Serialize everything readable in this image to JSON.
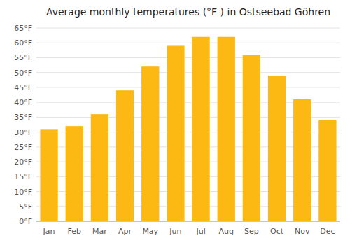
{
  "chart_data": {
    "type": "bar",
    "title": "Average monthly temperatures (°F ) in Ostseebad Göhren",
    "categories": [
      "Jan",
      "Feb",
      "Mar",
      "Apr",
      "May",
      "Jun",
      "Jul",
      "Aug",
      "Sep",
      "Oct",
      "Nov",
      "Dec"
    ],
    "values": [
      31,
      32,
      36,
      44,
      52,
      59,
      62,
      62,
      56,
      49,
      41,
      34
    ],
    "color": "#FDB913",
    "ylim": [
      0,
      65
    ],
    "yticks": [
      {
        "value": 0,
        "label": "0°F"
      },
      {
        "value": 5,
        "label": "5°F"
      },
      {
        "value": 10,
        "label": "10°F"
      },
      {
        "value": 15,
        "label": "15°F"
      },
      {
        "value": 20,
        "label": "20°F"
      },
      {
        "value": 25,
        "label": "25°F"
      },
      {
        "value": 30,
        "label": "30°F"
      },
      {
        "value": 35,
        "label": "35°F"
      },
      {
        "value": 40,
        "label": "40°F"
      },
      {
        "value": 45,
        "label": "45°F"
      },
      {
        "value": 50,
        "label": "50°F"
      },
      {
        "value": 55,
        "label": "55°F"
      },
      {
        "value": 60,
        "label": "60°F"
      },
      {
        "value": 65,
        "label": "65°F"
      }
    ],
    "grid": true
  }
}
